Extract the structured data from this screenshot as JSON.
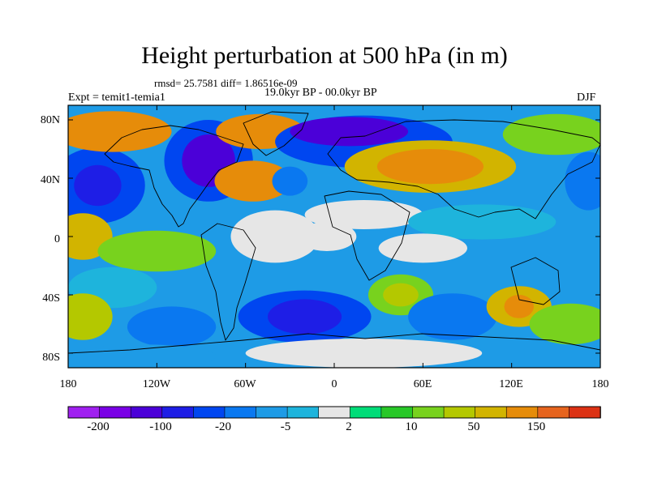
{
  "title": "Height perturbation at 500 hPa (in m)",
  "stats_line": "rmsd= 25.7581 diff= 1.86516e-09",
  "period": "19.0kyr BP - 00.0kyr BP",
  "experiment": "Expt = temit1-temia1",
  "season": "DJF",
  "lat_labels": [
    "80N",
    "40N",
    "0",
    "40S",
    "80S"
  ],
  "lon_labels": [
    "180",
    "120W",
    "60W",
    "0",
    "60E",
    "120E",
    "180"
  ],
  "colorbar": {
    "colors": [
      "#a020f0",
      "#7a00e6",
      "#4b00d8",
      "#1e1ee6",
      "#0046f0",
      "#0a78f0",
      "#1e9be6",
      "#1eb4dc",
      "#e6e6e6",
      "#00dc78",
      "#28c828",
      "#78d21e",
      "#b4c800",
      "#d2b400",
      "#e68c0a",
      "#e6641e",
      "#dc3214"
    ],
    "labels": [
      "-200",
      "-100",
      "-20",
      "-5",
      "2",
      "10",
      "50",
      "150"
    ]
  },
  "blobs": [
    {
      "lon": -160,
      "lat": 35,
      "rx": 32,
      "ry": 26,
      "color": "#0046f0"
    },
    {
      "lon": -160,
      "lat": 35,
      "rx": 16,
      "ry": 14,
      "color": "#1e1ee6"
    },
    {
      "lon": -150,
      "lat": 72,
      "rx": 40,
      "ry": 14,
      "color": "#e68c0a"
    },
    {
      "lon": -170,
      "lat": 0,
      "rx": 20,
      "ry": 16,
      "color": "#d2b400"
    },
    {
      "lon": -85,
      "lat": 52,
      "rx": 30,
      "ry": 28,
      "color": "#0046f0"
    },
    {
      "lon": -85,
      "lat": 52,
      "rx": 18,
      "ry": 18,
      "color": "#4b00d8"
    },
    {
      "lon": -50,
      "lat": 72,
      "rx": 30,
      "ry": 12,
      "color": "#e68c0a"
    },
    {
      "lon": -55,
      "lat": 38,
      "rx": 26,
      "ry": 14,
      "color": "#e68c0a"
    },
    {
      "lon": -30,
      "lat": 38,
      "rx": 12,
      "ry": 10,
      "color": "#0a78f0"
    },
    {
      "lon": 20,
      "lat": 65,
      "rx": 60,
      "ry": 18,
      "color": "#0046f0"
    },
    {
      "lon": 10,
      "lat": 72,
      "rx": 40,
      "ry": 10,
      "color": "#4b00d8"
    },
    {
      "lon": 65,
      "lat": 48,
      "rx": 58,
      "ry": 18,
      "color": "#d2b400"
    },
    {
      "lon": 65,
      "lat": 48,
      "rx": 36,
      "ry": 12,
      "color": "#e68c0a"
    },
    {
      "lon": 150,
      "lat": 70,
      "rx": 36,
      "ry": 14,
      "color": "#78d21e"
    },
    {
      "lon": 172,
      "lat": 38,
      "rx": 16,
      "ry": 20,
      "color": "#0a78f0"
    },
    {
      "lon": 20,
      "lat": 15,
      "rx": 40,
      "ry": 10,
      "color": "#e6e6e6"
    },
    {
      "lon": 100,
      "lat": 10,
      "rx": 50,
      "ry": 12,
      "color": "#1eb4dc"
    },
    {
      "lon": -120,
      "lat": -10,
      "rx": 40,
      "ry": 14,
      "color": "#78d21e"
    },
    {
      "lon": -40,
      "lat": 0,
      "rx": 30,
      "ry": 18,
      "color": "#e6e6e6"
    },
    {
      "lon": -5,
      "lat": 0,
      "rx": 20,
      "ry": 10,
      "color": "#e6e6e6"
    },
    {
      "lon": 60,
      "lat": -8,
      "rx": 30,
      "ry": 10,
      "color": "#e6e6e6"
    },
    {
      "lon": -150,
      "lat": -35,
      "rx": 30,
      "ry": 14,
      "color": "#1eb4dc"
    },
    {
      "lon": -170,
      "lat": -55,
      "rx": 20,
      "ry": 16,
      "color": "#b4c800"
    },
    {
      "lon": -110,
      "lat": -62,
      "rx": 30,
      "ry": 14,
      "color": "#0a78f0"
    },
    {
      "lon": -20,
      "lat": -55,
      "rx": 45,
      "ry": 18,
      "color": "#0046f0"
    },
    {
      "lon": -20,
      "lat": -55,
      "rx": 25,
      "ry": 12,
      "color": "#1e1ee6"
    },
    {
      "lon": 45,
      "lat": -40,
      "rx": 22,
      "ry": 14,
      "color": "#78d21e"
    },
    {
      "lon": 45,
      "lat": -40,
      "rx": 12,
      "ry": 8,
      "color": "#b4c800"
    },
    {
      "lon": 80,
      "lat": -55,
      "rx": 30,
      "ry": 16,
      "color": "#0a78f0"
    },
    {
      "lon": 125,
      "lat": -48,
      "rx": 22,
      "ry": 14,
      "color": "#d2b400"
    },
    {
      "lon": 125,
      "lat": -48,
      "rx": 10,
      "ry": 8,
      "color": "#e68c0a"
    },
    {
      "lon": 160,
      "lat": -60,
      "rx": 28,
      "ry": 14,
      "color": "#78d21e"
    },
    {
      "lon": 20,
      "lat": -80,
      "rx": 80,
      "ry": 10,
      "color": "#e6e6e6"
    },
    {
      "lon": -130,
      "lat": -82,
      "rx": 50,
      "ry": 8,
      "color": "#1e9be6"
    }
  ]
}
